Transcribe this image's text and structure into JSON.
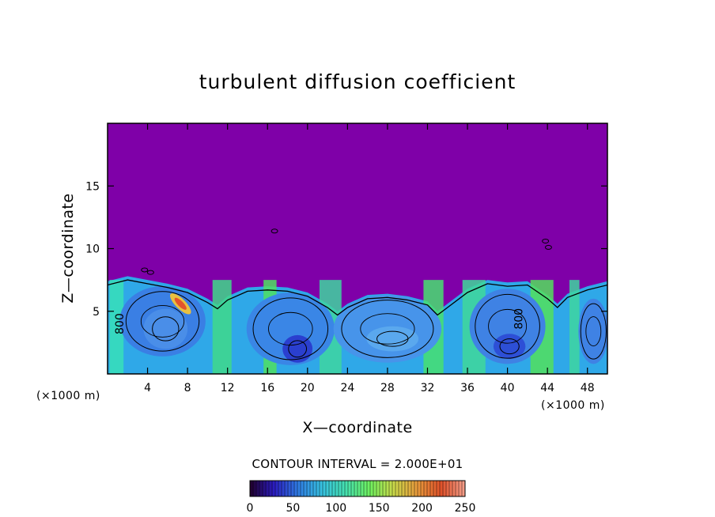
{
  "chart_data": {
    "type": "heatmap",
    "title": "turbulent diffusion coefficient",
    "xlabel": "X—coordinate",
    "ylabel": "Z—coordinate",
    "x_unit": "(×1000 m)",
    "z_unit": "(×1000 m)",
    "xlim": [
      0,
      50
    ],
    "ylim": [
      0,
      20
    ],
    "x_ticks": [
      4,
      8,
      12,
      16,
      20,
      24,
      28,
      32,
      36,
      40,
      44,
      48
    ],
    "x_tick_labels": [
      "4",
      "8",
      "12",
      "16",
      "20",
      "24",
      "28",
      "32",
      "36",
      "40",
      "44",
      "48"
    ],
    "y_ticks": [
      5,
      10,
      15
    ],
    "y_tick_labels": [
      "5",
      "10",
      "15"
    ],
    "contour_interval_text": "CONTOUR INTERVAL = 2.000E+01",
    "contour_interval": 20,
    "colorbar": {
      "range": [
        0,
        250
      ],
      "tick_values": [
        0,
        50,
        100,
        150,
        200,
        250
      ],
      "tick_labels": [
        "0",
        "50",
        "100",
        "150",
        "200",
        "250"
      ],
      "colors": [
        "#21002a",
        "#2b1cc0",
        "#2f7ae2",
        "#37c0e0",
        "#45e0b0",
        "#6ef060",
        "#c9d94a",
        "#e89a3c",
        "#e0512a",
        "#f5a08c"
      ]
    },
    "background_color": "#7f00a8",
    "layer_top_km": 7.5,
    "annotations": [
      "800",
      "800"
    ],
    "grid": false,
    "legend": "none"
  }
}
